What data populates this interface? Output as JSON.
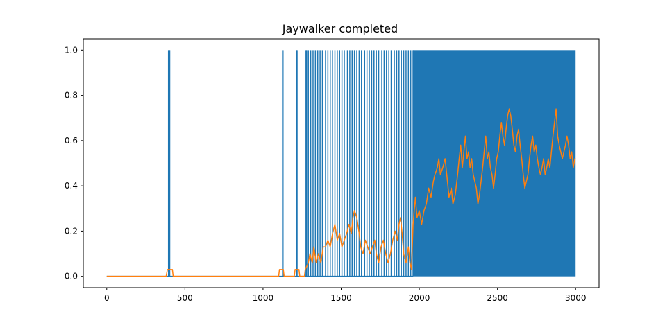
{
  "chart_data": {
    "type": "line",
    "title": "Jaywalker completed",
    "xlabel": "",
    "ylabel": "",
    "xlim": [
      -150,
      3150
    ],
    "ylim": [
      -0.05,
      1.05
    ],
    "xticks": [
      0,
      500,
      1000,
      1500,
      2000,
      2500,
      3000
    ],
    "xtick_labels": [
      "0",
      "500",
      "1000",
      "1500",
      "2000",
      "2500",
      "3000"
    ],
    "yticks": [
      0.0,
      0.2,
      0.4,
      0.6,
      0.8,
      1.0
    ],
    "ytick_labels": [
      "0.0",
      "0.2",
      "0.4",
      "0.6",
      "0.8",
      "1.0"
    ],
    "grid": false,
    "series": [
      {
        "color": "#1f77b4",
        "style": "binary-spikes",
        "x_range": [
          0,
          3000
        ],
        "values_range": [
          0,
          1
        ],
        "spike_x": [
          395,
          398,
          400,
          403,
          1125,
          1128,
          1215,
          1218,
          1275,
          1280,
          1290,
          1305,
          1320,
          1335,
          1350,
          1365,
          1380,
          1400,
          1415,
          1430,
          1445,
          1460,
          1475,
          1490,
          1505,
          1520,
          1540,
          1555,
          1570,
          1585,
          1600,
          1615,
          1630,
          1650,
          1665,
          1680,
          1695,
          1710,
          1725,
          1740,
          1760,
          1775,
          1790,
          1805,
          1820,
          1840,
          1855,
          1870,
          1885,
          1900,
          1915,
          1930,
          1945,
          1960
        ],
        "dense_region": [
          1960,
          3000
        ]
      },
      {
        "color": "#ff7f0e",
        "style": "moving-average",
        "points": [
          [
            0,
            0
          ],
          [
            380,
            0
          ],
          [
            388,
            0.03
          ],
          [
            420,
            0.03
          ],
          [
            425,
            0
          ],
          [
            1100,
            0
          ],
          [
            1105,
            0.03
          ],
          [
            1130,
            0.03
          ],
          [
            1135,
            0
          ],
          [
            1200,
            0
          ],
          [
            1205,
            0.03
          ],
          [
            1230,
            0.03
          ],
          [
            1235,
            0
          ],
          [
            1265,
            0
          ],
          [
            1270,
            0.03
          ],
          [
            1290,
            0.06
          ],
          [
            1300,
            0.1
          ],
          [
            1315,
            0.06
          ],
          [
            1325,
            0.13
          ],
          [
            1340,
            0.06
          ],
          [
            1355,
            0.1
          ],
          [
            1370,
            0.06
          ],
          [
            1385,
            0.13
          ],
          [
            1400,
            0.13
          ],
          [
            1415,
            0.16
          ],
          [
            1430,
            0.13
          ],
          [
            1445,
            0.19
          ],
          [
            1460,
            0.23
          ],
          [
            1475,
            0.16
          ],
          [
            1490,
            0.19
          ],
          [
            1505,
            0.13
          ],
          [
            1520,
            0.16
          ],
          [
            1535,
            0.19
          ],
          [
            1550,
            0.23
          ],
          [
            1565,
            0.19
          ],
          [
            1575,
            0.26
          ],
          [
            1585,
            0.29
          ],
          [
            1600,
            0.26
          ],
          [
            1615,
            0.19
          ],
          [
            1625,
            0.13
          ],
          [
            1640,
            0.1
          ],
          [
            1655,
            0.16
          ],
          [
            1670,
            0.13
          ],
          [
            1685,
            0.1
          ],
          [
            1700,
            0.13
          ],
          [
            1715,
            0.16
          ],
          [
            1725,
            0.1
          ],
          [
            1740,
            0.06
          ],
          [
            1755,
            0.13
          ],
          [
            1770,
            0.16
          ],
          [
            1785,
            0.1
          ],
          [
            1800,
            0.06
          ],
          [
            1815,
            0.1
          ],
          [
            1830,
            0.16
          ],
          [
            1845,
            0.2
          ],
          [
            1860,
            0.16
          ],
          [
            1870,
            0.23
          ],
          [
            1880,
            0.26
          ],
          [
            1890,
            0.19
          ],
          [
            1900,
            0.1
          ],
          [
            1915,
            0.06
          ],
          [
            1930,
            0.13
          ],
          [
            1940,
            0.06
          ],
          [
            1950,
            0.03
          ],
          [
            1960,
            0.23
          ],
          [
            1975,
            0.35
          ],
          [
            1985,
            0.26
          ],
          [
            2000,
            0.29
          ],
          [
            2015,
            0.23
          ],
          [
            2030,
            0.29
          ],
          [
            2045,
            0.32
          ],
          [
            2060,
            0.39
          ],
          [
            2075,
            0.35
          ],
          [
            2090,
            0.42
          ],
          [
            2100,
            0.45
          ],
          [
            2115,
            0.48
          ],
          [
            2125,
            0.52
          ],
          [
            2135,
            0.45
          ],
          [
            2150,
            0.48
          ],
          [
            2165,
            0.52
          ],
          [
            2180,
            0.42
          ],
          [
            2190,
            0.35
          ],
          [
            2205,
            0.39
          ],
          [
            2215,
            0.32
          ],
          [
            2230,
            0.36
          ],
          [
            2245,
            0.45
          ],
          [
            2255,
            0.52
          ],
          [
            2265,
            0.58
          ],
          [
            2275,
            0.48
          ],
          [
            2285,
            0.55
          ],
          [
            2295,
            0.62
          ],
          [
            2305,
            0.52
          ],
          [
            2315,
            0.55
          ],
          [
            2325,
            0.48
          ],
          [
            2335,
            0.52
          ],
          [
            2345,
            0.45
          ],
          [
            2355,
            0.42
          ],
          [
            2365,
            0.39
          ],
          [
            2375,
            0.32
          ],
          [
            2385,
            0.36
          ],
          [
            2395,
            0.42
          ],
          [
            2405,
            0.48
          ],
          [
            2415,
            0.55
          ],
          [
            2425,
            0.62
          ],
          [
            2435,
            0.52
          ],
          [
            2445,
            0.55
          ],
          [
            2455,
            0.48
          ],
          [
            2465,
            0.45
          ],
          [
            2475,
            0.39
          ],
          [
            2485,
            0.45
          ],
          [
            2495,
            0.52
          ],
          [
            2505,
            0.55
          ],
          [
            2515,
            0.62
          ],
          [
            2525,
            0.68
          ],
          [
            2535,
            0.62
          ],
          [
            2545,
            0.58
          ],
          [
            2555,
            0.65
          ],
          [
            2565,
            0.71
          ],
          [
            2575,
            0.74
          ],
          [
            2585,
            0.71
          ],
          [
            2595,
            0.65
          ],
          [
            2605,
            0.58
          ],
          [
            2615,
            0.55
          ],
          [
            2625,
            0.62
          ],
          [
            2635,
            0.65
          ],
          [
            2645,
            0.58
          ],
          [
            2655,
            0.52
          ],
          [
            2665,
            0.45
          ],
          [
            2675,
            0.39
          ],
          [
            2685,
            0.42
          ],
          [
            2695,
            0.45
          ],
          [
            2705,
            0.52
          ],
          [
            2715,
            0.58
          ],
          [
            2725,
            0.62
          ],
          [
            2735,
            0.55
          ],
          [
            2745,
            0.58
          ],
          [
            2755,
            0.52
          ],
          [
            2765,
            0.48
          ],
          [
            2775,
            0.45
          ],
          [
            2785,
            0.48
          ],
          [
            2795,
            0.52
          ],
          [
            2805,
            0.45
          ],
          [
            2815,
            0.48
          ],
          [
            2825,
            0.52
          ],
          [
            2835,
            0.48
          ],
          [
            2845,
            0.55
          ],
          [
            2855,
            0.62
          ],
          [
            2865,
            0.68
          ],
          [
            2875,
            0.74
          ],
          [
            2885,
            0.62
          ],
          [
            2895,
            0.58
          ],
          [
            2905,
            0.55
          ],
          [
            2915,
            0.52
          ],
          [
            2925,
            0.55
          ],
          [
            2935,
            0.58
          ],
          [
            2945,
            0.62
          ],
          [
            2955,
            0.58
          ],
          [
            2965,
            0.52
          ],
          [
            2975,
            0.55
          ],
          [
            2985,
            0.48
          ],
          [
            2995,
            0.52
          ],
          [
            3000,
            0.52
          ]
        ]
      }
    ]
  }
}
